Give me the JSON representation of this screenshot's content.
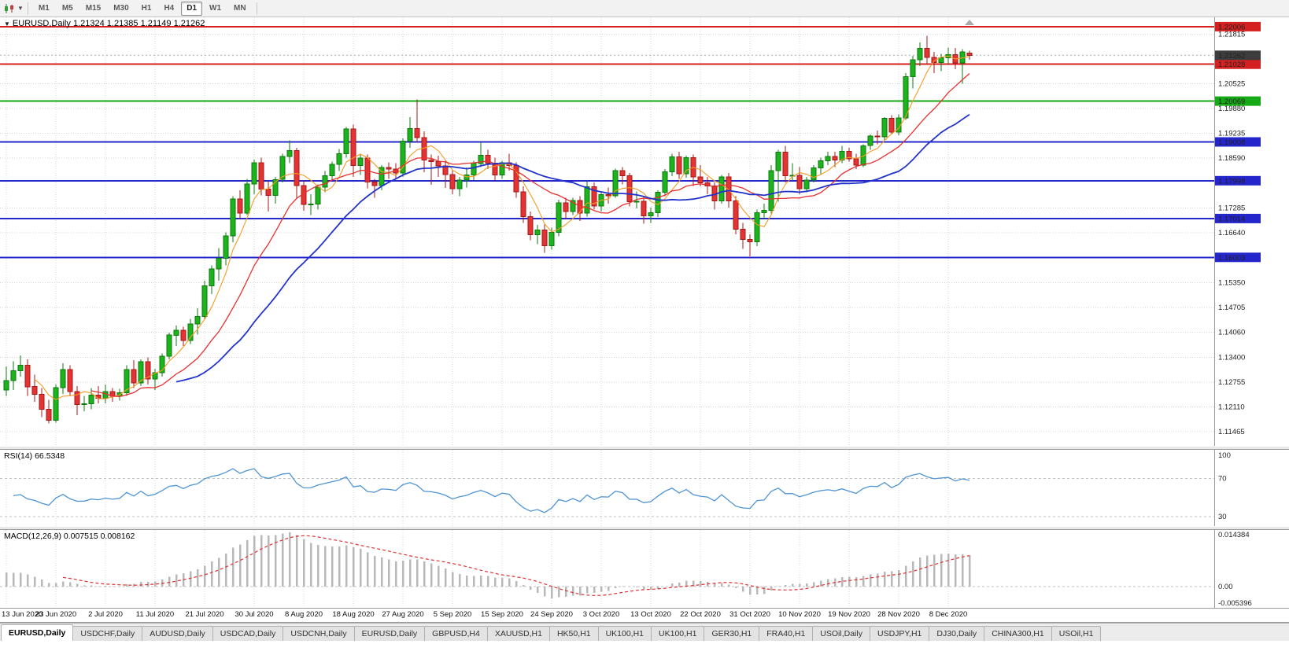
{
  "toolbar": {
    "timeframes": [
      "M1",
      "M5",
      "M15",
      "M30",
      "H1",
      "H4",
      "D1",
      "W1",
      "MN"
    ],
    "active_timeframe": "D1"
  },
  "chart": {
    "symbol_label": "EURUSD,Daily",
    "ohlc": "1.21324 1.21385 1.21149 1.21262"
  },
  "rsi": {
    "label": "RSI(14) 66.5348",
    "axis_top": "100",
    "axis_upper": "70",
    "axis_lower": "30"
  },
  "macd": {
    "label": "MACD(12,26,9) 0.007515 0.008162",
    "axis_top": "0.014384",
    "axis_zero": "0.00",
    "axis_bottom": "-0.005396"
  },
  "price_axis": {
    "ticks": [
      "1.21815",
      "1.20525",
      "1.19880",
      "1.19235",
      "1.18590",
      "1.17285",
      "1.16640",
      "1.15350",
      "1.14705",
      "1.14060",
      "1.13400",
      "1.12755",
      "1.12110",
      "1.11465"
    ]
  },
  "colors": {
    "candle_up": "#1db31d",
    "candle_up_dark": "#0c7a0c",
    "candle_down": "#e43333",
    "candle_down_dark": "#a51818",
    "grid": "#d4d4d4",
    "level_dash": "#c0c0c0",
    "rsi_line": "#4f94d4",
    "macd_hist": "#b8b8b8",
    "macd_signal": "#e03030",
    "axis_separator": "#9a9a9a"
  },
  "tabs": [
    {
      "label": "EURUSD,Daily",
      "active": true
    },
    {
      "label": "USDCHF,Daily",
      "active": false
    },
    {
      "label": "AUDUSD,Daily",
      "active": false
    },
    {
      "label": "USDCAD,Daily",
      "active": false
    },
    {
      "label": "USDCNH,Daily",
      "active": false
    },
    {
      "label": "EURUSD,Daily",
      "active": false
    },
    {
      "label": "GBPUSD,H4",
      "active": false
    },
    {
      "label": "XAUUSD,H1",
      "active": false
    },
    {
      "label": "HK50,H1",
      "active": false
    },
    {
      "label": "UK100,H1",
      "active": false
    },
    {
      "label": "UK100,H1",
      "active": false
    },
    {
      "label": "GER30,H1",
      "active": false
    },
    {
      "label": "FRA40,H1",
      "active": false
    },
    {
      "label": "USOil,Daily",
      "active": false
    },
    {
      "label": "USDJPY,H1",
      "active": false
    },
    {
      "label": "DJ30,Daily",
      "active": false
    },
    {
      "label": "CHINA300,H1",
      "active": false
    },
    {
      "label": "USOil,H1",
      "active": false
    }
  ],
  "chart_data": {
    "type": "candlestick",
    "symbol": "EURUSD",
    "timeframe": "Daily",
    "label_stride": 7,
    "x_labels": [
      "13 Jun 2020",
      "23 Jun 2020",
      "2 Jul 2020",
      "11 Jul 2020",
      "21 Jul 2020",
      "30 Jul 2020",
      "8 Aug 2020",
      "18 Aug 2020",
      "27 Aug 2020",
      "5 Sep 2020",
      "15 Sep 2020",
      "24 Sep 2020",
      "3 Oct 2020",
      "13 Oct 2020",
      "22 Oct 2020",
      "31 Oct 2020",
      "10 Nov 2020",
      "19 Nov 2020",
      "28 Nov 2020",
      "8 Dec 2020"
    ],
    "price_range": [
      1.111,
      1.2225
    ],
    "current_price": {
      "value": 1.21262,
      "label": "1.21262",
      "color": "#3d3d3d"
    },
    "horizontal_lines": [
      {
        "price": 1.22006,
        "label": "1.22006",
        "color": "#d42020"
      },
      {
        "price": 1.21028,
        "label": "1.21028",
        "color": "#d42020"
      },
      {
        "price": 1.20069,
        "label": "1.20069",
        "color": "#15a915"
      },
      {
        "price": 1.19008,
        "label": "1.19008",
        "color": "#2525cc"
      },
      {
        "price": 1.17998,
        "label": "1.17998",
        "color": "#2525cc"
      },
      {
        "price": 1.17014,
        "label": "1.17014",
        "color": "#2525cc"
      },
      {
        "price": 1.16003,
        "label": "1.16003",
        "color": "#2525cc"
      }
    ],
    "moving_averages": [
      {
        "period": 5,
        "color": "#f59a23",
        "width": 1.1
      },
      {
        "period": 13,
        "color": "#e93030",
        "width": 1.3
      },
      {
        "period": 25,
        "color": "#2233cc",
        "width": 1.8
      }
    ],
    "indicators": {
      "rsi": {
        "period": 14,
        "current": 66.5348,
        "levels": [
          70,
          30
        ],
        "scale": [
          20,
          100
        ]
      },
      "macd": {
        "fast": 12,
        "slow": 26,
        "signal": 9,
        "macd_value": 0.007515,
        "signal_value": 0.008162,
        "scale": [
          -0.0056,
          0.0149
        ]
      }
    },
    "candles": [
      [
        1.1255,
        1.1317,
        1.124,
        1.128
      ],
      [
        1.128,
        1.133,
        1.1255,
        1.1305
      ],
      [
        1.1305,
        1.1345,
        1.129,
        1.132
      ],
      [
        1.132,
        1.1335,
        1.124,
        1.1264
      ],
      [
        1.1264,
        1.1295,
        1.1225,
        1.1244
      ],
      [
        1.1244,
        1.126,
        1.1185,
        1.1205
      ],
      [
        1.1205,
        1.123,
        1.1168,
        1.1177
      ],
      [
        1.1177,
        1.127,
        1.117,
        1.1261
      ],
      [
        1.1261,
        1.1325,
        1.1245,
        1.1308
      ],
      [
        1.1308,
        1.132,
        1.124,
        1.1251
      ],
      [
        1.1251,
        1.1265,
        1.119,
        1.1217
      ],
      [
        1.1217,
        1.124,
        1.12,
        1.1219
      ],
      [
        1.1219,
        1.126,
        1.1205,
        1.1242
      ],
      [
        1.1242,
        1.1265,
        1.122,
        1.1234
      ],
      [
        1.1234,
        1.127,
        1.122,
        1.1251
      ],
      [
        1.1251,
        1.126,
        1.1225,
        1.1239
      ],
      [
        1.1239,
        1.1258,
        1.1228,
        1.1248
      ],
      [
        1.1248,
        1.132,
        1.124,
        1.1308
      ],
      [
        1.1308,
        1.1333,
        1.126,
        1.1274
      ],
      [
        1.1274,
        1.1335,
        1.1265,
        1.1329
      ],
      [
        1.1329,
        1.134,
        1.127,
        1.1284
      ],
      [
        1.1284,
        1.131,
        1.1255,
        1.13
      ],
      [
        1.13,
        1.135,
        1.129,
        1.1343
      ],
      [
        1.1343,
        1.1405,
        1.1335,
        1.1398
      ],
      [
        1.1398,
        1.1423,
        1.137,
        1.1411
      ],
      [
        1.1411,
        1.142,
        1.137,
        1.1384
      ],
      [
        1.1384,
        1.144,
        1.1375,
        1.1427
      ],
      [
        1.1427,
        1.1468,
        1.14,
        1.1447
      ],
      [
        1.1447,
        1.154,
        1.144,
        1.1526
      ],
      [
        1.1526,
        1.158,
        1.1505,
        1.157
      ],
      [
        1.157,
        1.1625,
        1.154,
        1.1598
      ],
      [
        1.1598,
        1.1665,
        1.158,
        1.1656
      ],
      [
        1.1656,
        1.176,
        1.164,
        1.1752
      ],
      [
        1.1752,
        1.1775,
        1.17,
        1.1716
      ],
      [
        1.1716,
        1.1805,
        1.171,
        1.1791
      ],
      [
        1.1791,
        1.1855,
        1.1765,
        1.1847
      ],
      [
        1.1847,
        1.186,
        1.1762,
        1.1778
      ],
      [
        1.1778,
        1.1798,
        1.172,
        1.1762
      ],
      [
        1.1762,
        1.181,
        1.174,
        1.1803
      ],
      [
        1.1803,
        1.187,
        1.1795,
        1.1863
      ],
      [
        1.1863,
        1.1905,
        1.1845,
        1.1878
      ],
      [
        1.1878,
        1.1885,
        1.1755,
        1.1787
      ],
      [
        1.1787,
        1.18,
        1.1722,
        1.1738
      ],
      [
        1.1738,
        1.1765,
        1.171,
        1.1739
      ],
      [
        1.1739,
        1.179,
        1.1725,
        1.1783
      ],
      [
        1.1783,
        1.1825,
        1.177,
        1.1813
      ],
      [
        1.1813,
        1.185,
        1.18,
        1.1842
      ],
      [
        1.1842,
        1.1882,
        1.1825,
        1.187
      ],
      [
        1.187,
        1.194,
        1.186,
        1.1934
      ],
      [
        1.1934,
        1.1946,
        1.181,
        1.1839
      ],
      [
        1.1839,
        1.187,
        1.1815,
        1.1859
      ],
      [
        1.1859,
        1.1868,
        1.178,
        1.1796
      ],
      [
        1.1796,
        1.1805,
        1.1755,
        1.1787
      ],
      [
        1.1787,
        1.184,
        1.1775,
        1.1834
      ],
      [
        1.1834,
        1.1848,
        1.1805,
        1.183
      ],
      [
        1.183,
        1.1845,
        1.1805,
        1.182
      ],
      [
        1.182,
        1.191,
        1.181,
        1.1903
      ],
      [
        1.1903,
        1.1965,
        1.1885,
        1.1936
      ],
      [
        1.1936,
        1.2011,
        1.19,
        1.1912
      ],
      [
        1.1912,
        1.1928,
        1.1822,
        1.1854
      ],
      [
        1.1854,
        1.1868,
        1.1789,
        1.185
      ],
      [
        1.185,
        1.1865,
        1.181,
        1.1838
      ],
      [
        1.1838,
        1.1852,
        1.1781,
        1.1816
      ],
      [
        1.1816,
        1.1828,
        1.1765,
        1.1779
      ],
      [
        1.1779,
        1.181,
        1.176,
        1.1801
      ],
      [
        1.1801,
        1.1834,
        1.1782,
        1.1815
      ],
      [
        1.1815,
        1.1852,
        1.18,
        1.1845
      ],
      [
        1.1845,
        1.1901,
        1.1835,
        1.1866
      ],
      [
        1.1866,
        1.188,
        1.183,
        1.1846
      ],
      [
        1.1846,
        1.186,
        1.18,
        1.1815
      ],
      [
        1.1815,
        1.1852,
        1.1805,
        1.1847
      ],
      [
        1.1847,
        1.187,
        1.1826,
        1.1839
      ],
      [
        1.1839,
        1.1848,
        1.1755,
        1.1771
      ],
      [
        1.1771,
        1.1785,
        1.169,
        1.1706
      ],
      [
        1.1706,
        1.172,
        1.1645,
        1.1659
      ],
      [
        1.1659,
        1.1685,
        1.1635,
        1.1672
      ],
      [
        1.1672,
        1.1686,
        1.1612,
        1.1631
      ],
      [
        1.1631,
        1.1678,
        1.162,
        1.1665
      ],
      [
        1.1665,
        1.175,
        1.1655,
        1.1742
      ],
      [
        1.1742,
        1.1755,
        1.17,
        1.172
      ],
      [
        1.172,
        1.1755,
        1.171,
        1.1748
      ],
      [
        1.1748,
        1.176,
        1.1695,
        1.1716
      ],
      [
        1.1716,
        1.1798,
        1.1706,
        1.1784
      ],
      [
        1.1784,
        1.1795,
        1.1725,
        1.1734
      ],
      [
        1.1734,
        1.177,
        1.172,
        1.1764
      ],
      [
        1.1764,
        1.1782,
        1.174,
        1.1761
      ],
      [
        1.1761,
        1.1831,
        1.1755,
        1.1826
      ],
      [
        1.1826,
        1.1835,
        1.179,
        1.1813
      ],
      [
        1.1813,
        1.182,
        1.1733,
        1.1745
      ],
      [
        1.1745,
        1.1772,
        1.1728,
        1.1746
      ],
      [
        1.1746,
        1.1758,
        1.1688,
        1.1708
      ],
      [
        1.1708,
        1.173,
        1.169,
        1.1717
      ],
      [
        1.1717,
        1.1775,
        1.1705,
        1.177
      ],
      [
        1.177,
        1.183,
        1.176,
        1.1823
      ],
      [
        1.1823,
        1.187,
        1.1812,
        1.1862
      ],
      [
        1.1862,
        1.1875,
        1.1805,
        1.1818
      ],
      [
        1.1818,
        1.1865,
        1.1808,
        1.186
      ],
      [
        1.186,
        1.1868,
        1.1786,
        1.181
      ],
      [
        1.181,
        1.184,
        1.1785,
        1.1794
      ],
      [
        1.1794,
        1.181,
        1.1765,
        1.1786
      ],
      [
        1.1786,
        1.1795,
        1.1725,
        1.1747
      ],
      [
        1.1747,
        1.1815,
        1.174,
        1.181
      ],
      [
        1.181,
        1.182,
        1.173,
        1.1747
      ],
      [
        1.1747,
        1.176,
        1.166,
        1.1674
      ],
      [
        1.1674,
        1.169,
        1.1622,
        1.1647
      ],
      [
        1.1647,
        1.166,
        1.1603,
        1.1641
      ],
      [
        1.1641,
        1.1725,
        1.163,
        1.1717
      ],
      [
        1.1717,
        1.174,
        1.17,
        1.1723
      ],
      [
        1.1723,
        1.184,
        1.1715,
        1.1826
      ],
      [
        1.1826,
        1.188,
        1.1745,
        1.1874
      ],
      [
        1.1874,
        1.189,
        1.1795,
        1.1813
      ],
      [
        1.1813,
        1.1845,
        1.18,
        1.1814
      ],
      [
        1.1814,
        1.1835,
        1.1765,
        1.1779
      ],
      [
        1.1779,
        1.181,
        1.177,
        1.1802
      ],
      [
        1.1802,
        1.184,
        1.1795,
        1.1833
      ],
      [
        1.1833,
        1.186,
        1.1815,
        1.1852
      ],
      [
        1.1852,
        1.1875,
        1.184,
        1.1863
      ],
      [
        1.1863,
        1.1875,
        1.1835,
        1.1854
      ],
      [
        1.1854,
        1.189,
        1.1845,
        1.1876
      ],
      [
        1.1876,
        1.1885,
        1.185,
        1.1857
      ],
      [
        1.1857,
        1.187,
        1.183,
        1.184
      ],
      [
        1.184,
        1.1895,
        1.1835,
        1.1891
      ],
      [
        1.1891,
        1.192,
        1.188,
        1.1916
      ],
      [
        1.1916,
        1.193,
        1.1895,
        1.1914
      ],
      [
        1.1914,
        1.1965,
        1.1905,
        1.1962
      ],
      [
        1.1962,
        1.197,
        1.192,
        1.1926
      ],
      [
        1.1926,
        1.1972,
        1.1918,
        1.1963
      ],
      [
        1.1963,
        1.208,
        1.1958,
        1.2071
      ],
      [
        1.2071,
        1.2125,
        1.204,
        1.2115
      ],
      [
        1.2115,
        1.216,
        1.2098,
        1.2144
      ],
      [
        1.2144,
        1.2177,
        1.2105,
        1.2121
      ],
      [
        1.2121,
        1.2135,
        1.208,
        1.2107
      ],
      [
        1.2107,
        1.213,
        1.2085,
        1.212
      ],
      [
        1.212,
        1.2146,
        1.2104,
        1.2128
      ],
      [
        1.2128,
        1.2145,
        1.209,
        1.2106
      ],
      [
        1.2106,
        1.2142,
        1.2052,
        1.2135
      ],
      [
        1.21324,
        1.21385,
        1.21149,
        1.21262
      ]
    ]
  }
}
